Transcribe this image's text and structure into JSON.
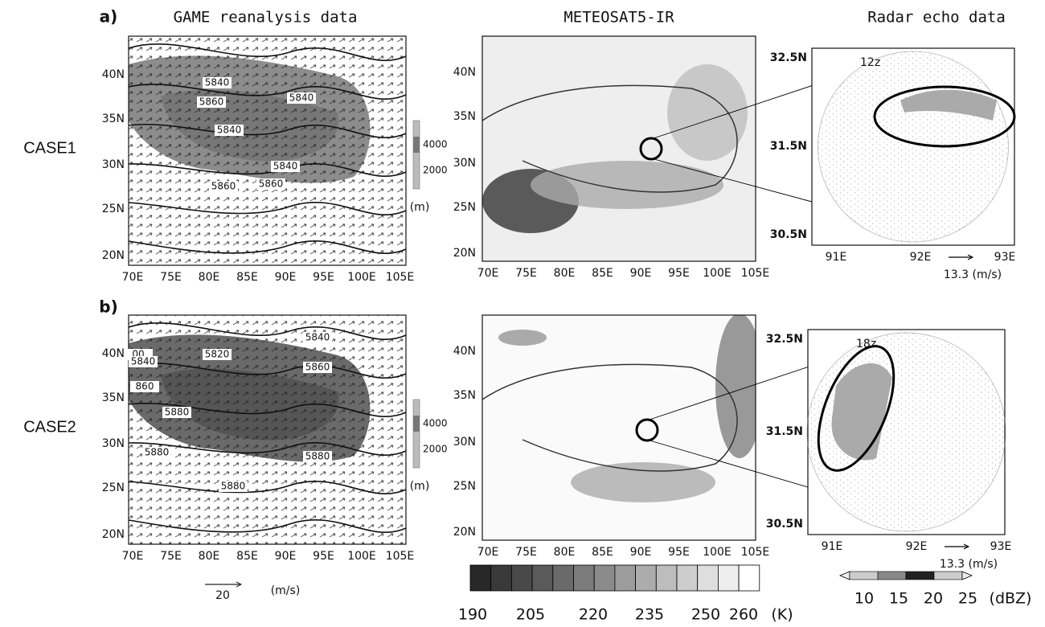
{
  "header": {
    "titles": [
      "GAME reanalysis data",
      "METEOSAT5-IR",
      "Radar echo data"
    ]
  },
  "rows": [
    {
      "label": "a)",
      "case": "CASE1",
      "radar_time": "12z",
      "contour_labels": [
        "5840",
        "5860",
        "5840",
        "5840",
        "5840",
        "5860",
        "5860"
      ]
    },
    {
      "label": "b)",
      "case": "CASE2",
      "radar_time": "18z",
      "contour_labels": [
        "00",
        "5820",
        "5840",
        "5840",
        "5860",
        "860",
        "5880",
        "5880",
        "5880",
        "5880"
      ]
    }
  ],
  "map_axes": {
    "lat": [
      "40N",
      "35N",
      "30N",
      "25N",
      "20N"
    ],
    "lon": [
      "70E",
      "75E",
      "80E",
      "85E",
      "90E",
      "95E",
      "100E",
      "105E"
    ]
  },
  "radar_axes": {
    "lat": [
      "32.5N",
      "31.5N",
      "30.5N"
    ],
    "lon": [
      "91E",
      "92E",
      "93E"
    ],
    "ref_vector": "13.3 (m/s)"
  },
  "topo_colorbar": {
    "labels": [
      "4000",
      "2000"
    ],
    "unit": "(m)"
  },
  "wind_reference": {
    "value": "20",
    "unit": "(m/s)"
  },
  "ir_colorbar": {
    "labels": [
      "190",
      "205",
      "220",
      "235",
      "250",
      "260"
    ],
    "unit": "(K)"
  },
  "radar_colorbar": {
    "labels": [
      "10",
      "15",
      "20",
      "25"
    ],
    "unit": "(dBZ)"
  }
}
